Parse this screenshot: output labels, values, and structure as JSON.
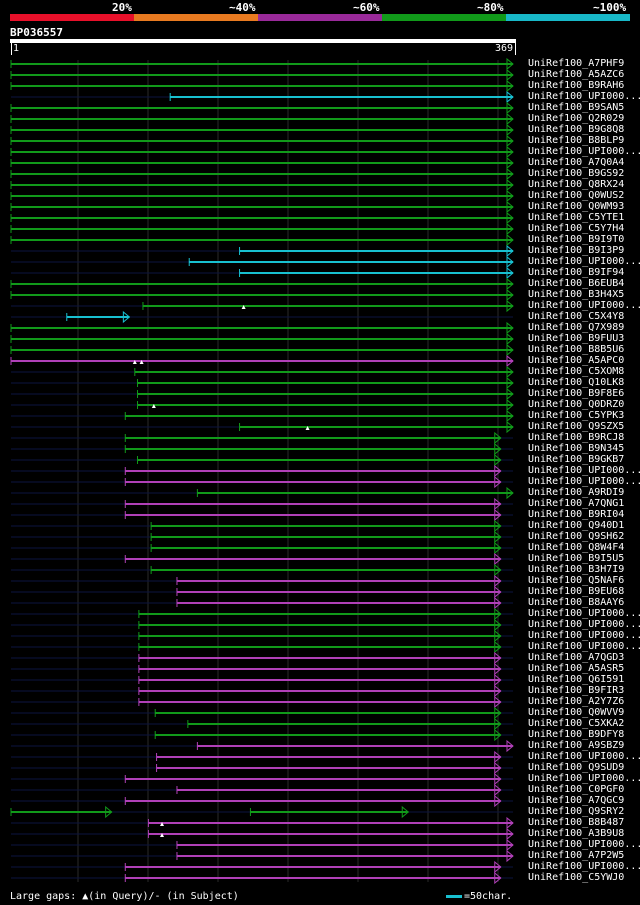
{
  "legend": {
    "labels": [
      "20%",
      "~40%",
      "~60%",
      "~80%",
      "~100%"
    ],
    "colors": [
      "#e8102a",
      "#e87a20",
      "#9a2a9a",
      "#119a1a",
      "#18b8c8"
    ]
  },
  "query": {
    "name": "BP036557",
    "start": "1",
    "end": "369",
    "length": 369
  },
  "footer": {
    "text": "Large gaps: ▲(in Query)/- (in Subject)",
    "scale": "=50char."
  },
  "hits": [
    {
      "label": "UniRef100_A7PHF9",
      "color": "green",
      "segments": [
        [
          0,
          369
        ]
      ]
    },
    {
      "label": "UniRef100_A5AZC6",
      "color": "green",
      "segments": [
        [
          0,
          369
        ]
      ]
    },
    {
      "label": "UniRef100_B9RAH6",
      "color": "green",
      "segments": [
        [
          0,
          369
        ]
      ]
    },
    {
      "label": "UniRef100_UPI000...",
      "color": "cyan",
      "segments": [
        [
          117,
          369
        ]
      ]
    },
    {
      "label": "UniRef100_B9SAN5",
      "color": "green",
      "segments": [
        [
          0,
          369
        ]
      ]
    },
    {
      "label": "UniRef100_Q2R029",
      "color": "green",
      "segments": [
        [
          0,
          369
        ]
      ]
    },
    {
      "label": "UniRef100_B9G8Q8",
      "color": "green",
      "segments": [
        [
          0,
          369
        ]
      ]
    },
    {
      "label": "UniRef100_B8BLP9",
      "color": "green",
      "segments": [
        [
          0,
          369
        ]
      ]
    },
    {
      "label": "UniRef100_UPI000...",
      "color": "green",
      "segments": [
        [
          0,
          369
        ]
      ]
    },
    {
      "label": "UniRef100_A7Q0A4",
      "color": "green",
      "segments": [
        [
          0,
          369
        ]
      ]
    },
    {
      "label": "UniRef100_B9GS92",
      "color": "green",
      "segments": [
        [
          0,
          369
        ]
      ]
    },
    {
      "label": "UniRef100_Q8RX24",
      "color": "green",
      "segments": [
        [
          0,
          369
        ]
      ]
    },
    {
      "label": "UniRef100_Q0WUS2",
      "color": "green",
      "segments": [
        [
          0,
          369
        ]
      ]
    },
    {
      "label": "UniRef100_Q0WM93",
      "color": "green",
      "segments": [
        [
          0,
          369
        ]
      ]
    },
    {
      "label": "UniRef100_C5YTE1",
      "color": "green",
      "segments": [
        [
          0,
          369
        ]
      ]
    },
    {
      "label": "UniRef100_C5Y7H4",
      "color": "green",
      "segments": [
        [
          0,
          369
        ]
      ]
    },
    {
      "label": "UniRef100_B9I9T0",
      "color": "green",
      "segments": [
        [
          0,
          369
        ]
      ]
    },
    {
      "label": "UniRef100_B9I3P9",
      "color": "cyan",
      "segments": [
        [
          168,
          369
        ]
      ]
    },
    {
      "label": "UniRef100_UPI000...",
      "color": "cyan",
      "segments": [
        [
          131,
          369
        ]
      ]
    },
    {
      "label": "UniRef100_B9IF94",
      "color": "cyan",
      "segments": [
        [
          168,
          369
        ]
      ]
    },
    {
      "label": "UniRef100_B6EUB4",
      "color": "green",
      "segments": [
        [
          0,
          369
        ]
      ]
    },
    {
      "label": "UniRef100_B3H4X5",
      "color": "green",
      "segments": [
        [
          0,
          369
        ]
      ]
    },
    {
      "label": "UniRef100_UPI000...",
      "color": "green",
      "segments": [
        [
          97,
          369
        ]
      ],
      "markers": [
        171
      ]
    },
    {
      "label": "UniRef100_C5X4Y8",
      "color": "cyan",
      "segments": [
        [
          41,
          87
        ]
      ]
    },
    {
      "label": "UniRef100_Q7X989",
      "color": "green",
      "segments": [
        [
          0,
          369
        ]
      ]
    },
    {
      "label": "UniRef100_B9FUU3",
      "color": "green",
      "segments": [
        [
          0,
          369
        ]
      ]
    },
    {
      "label": "UniRef100_B8B5U6",
      "color": "green",
      "segments": [
        [
          0,
          369
        ]
      ]
    },
    {
      "label": "UniRef100_A5APC0",
      "color": "magenta",
      "segments": [
        [
          0,
          369
        ]
      ],
      "markers": [
        91,
        96
      ]
    },
    {
      "label": "UniRef100_C5XOM8",
      "color": "green",
      "segments": [
        [
          91,
          369
        ]
      ]
    },
    {
      "label": "UniRef100_Q10LK8",
      "color": "green",
      "segments": [
        [
          93,
          369
        ]
      ]
    },
    {
      "label": "UniRef100_B9F8E6",
      "color": "green",
      "segments": [
        [
          93,
          369
        ]
      ]
    },
    {
      "label": "UniRef100_Q0DRZ0",
      "color": "green",
      "segments": [
        [
          93,
          369
        ]
      ],
      "markers": [
        105
      ]
    },
    {
      "label": "UniRef100_C5YPK3",
      "color": "green",
      "segments": [
        [
          84,
          369
        ]
      ]
    },
    {
      "label": "UniRef100_Q9SZX5",
      "color": "green",
      "segments": [
        [
          168,
          369
        ]
      ],
      "markers": [
        218
      ]
    },
    {
      "label": "UniRef100_B9RCJ8",
      "color": "green",
      "segments": [
        [
          84,
          360
        ]
      ]
    },
    {
      "label": "UniRef100_B9N345",
      "color": "green",
      "segments": [
        [
          84,
          360
        ]
      ]
    },
    {
      "label": "UniRef100_B9GKB7",
      "color": "green",
      "segments": [
        [
          93,
          360
        ]
      ]
    },
    {
      "label": "UniRef100_UPI000...",
      "color": "magenta",
      "segments": [
        [
          84,
          360
        ]
      ]
    },
    {
      "label": "UniRef100_UPI000...",
      "color": "magenta",
      "segments": [
        [
          84,
          360
        ]
      ]
    },
    {
      "label": "UniRef100_A9RDI9",
      "color": "green",
      "segments": [
        [
          137,
          369
        ]
      ]
    },
    {
      "label": "UniRef100_A7QNG1",
      "color": "magenta",
      "segments": [
        [
          84,
          360
        ]
      ]
    },
    {
      "label": "UniRef100_B9RI04",
      "color": "magenta",
      "segments": [
        [
          84,
          360
        ]
      ]
    },
    {
      "label": "UniRef100_Q940D1",
      "color": "green",
      "segments": [
        [
          103,
          360
        ]
      ]
    },
    {
      "label": "UniRef100_Q9SH62",
      "color": "green",
      "segments": [
        [
          103,
          360
        ]
      ]
    },
    {
      "label": "UniRef100_Q8W4F4",
      "color": "green",
      "segments": [
        [
          103,
          360
        ]
      ]
    },
    {
      "label": "UniRef100_B9I5U5",
      "color": "magenta",
      "segments": [
        [
          84,
          360
        ]
      ]
    },
    {
      "label": "UniRef100_B3H7I9",
      "color": "green",
      "segments": [
        [
          103,
          360
        ]
      ]
    },
    {
      "label": "UniRef100_Q5NAF6",
      "color": "magenta",
      "segments": [
        [
          122,
          360
        ]
      ]
    },
    {
      "label": "UniRef100_B9EU68",
      "color": "magenta",
      "segments": [
        [
          122,
          360
        ]
      ]
    },
    {
      "label": "UniRef100_B8AAY6",
      "color": "magenta",
      "segments": [
        [
          122,
          360
        ]
      ]
    },
    {
      "label": "UniRef100_UPI000...",
      "color": "green",
      "segments": [
        [
          94,
          360
        ]
      ]
    },
    {
      "label": "UniRef100_UPI000...",
      "color": "green",
      "segments": [
        [
          94,
          360
        ]
      ]
    },
    {
      "label": "UniRef100_UPI000...",
      "color": "green",
      "segments": [
        [
          94,
          360
        ]
      ]
    },
    {
      "label": "UniRef100_UPI000...",
      "color": "green",
      "segments": [
        [
          94,
          360
        ]
      ]
    },
    {
      "label": "UniRef100_A7QGD3",
      "color": "magenta",
      "segments": [
        [
          94,
          360
        ]
      ]
    },
    {
      "label": "UniRef100_A5ASR5",
      "color": "magenta",
      "segments": [
        [
          94,
          360
        ]
      ]
    },
    {
      "label": "UniRef100_Q6I591",
      "color": "magenta",
      "segments": [
        [
          94,
          360
        ]
      ]
    },
    {
      "label": "UniRef100_B9FIR3",
      "color": "magenta",
      "segments": [
        [
          94,
          360
        ]
      ]
    },
    {
      "label": "UniRef100_A2Y7Z6",
      "color": "magenta",
      "segments": [
        [
          94,
          360
        ]
      ]
    },
    {
      "label": "UniRef100_Q0WVV9",
      "color": "green",
      "segments": [
        [
          106,
          360
        ]
      ]
    },
    {
      "label": "UniRef100_C5XKA2",
      "color": "green",
      "segments": [
        [
          130,
          360
        ]
      ]
    },
    {
      "label": "UniRef100_B9DFY8",
      "color": "green",
      "segments": [
        [
          106,
          360
        ]
      ]
    },
    {
      "label": "UniRef100_A9SBZ9",
      "color": "magenta",
      "segments": [
        [
          137,
          369
        ]
      ]
    },
    {
      "label": "UniRef100_UPI000...",
      "color": "magenta",
      "segments": [
        [
          107,
          360
        ]
      ]
    },
    {
      "label": "UniRef100_Q9SUD9",
      "color": "magenta",
      "segments": [
        [
          107,
          360
        ]
      ]
    },
    {
      "label": "UniRef100_UPI000...",
      "color": "magenta",
      "segments": [
        [
          84,
          360
        ]
      ]
    },
    {
      "label": "UniRef100_C0PGF0",
      "color": "magenta",
      "segments": [
        [
          122,
          360
        ]
      ]
    },
    {
      "label": "UniRef100_A7QGC9",
      "color": "magenta",
      "segments": [
        [
          84,
          360
        ]
      ]
    },
    {
      "label": "UniRef100_Q9SRY2",
      "color": "green",
      "segments": [
        [
          0,
          74
        ],
        [
          176,
          292
        ]
      ]
    },
    {
      "label": "UniRef100_B8B487",
      "color": "magenta",
      "segments": [
        [
          101,
          369
        ]
      ],
      "markers": [
        111
      ]
    },
    {
      "label": "UniRef100_A3B9U8",
      "color": "magenta",
      "segments": [
        [
          101,
          369
        ]
      ],
      "markers": [
        111
      ]
    },
    {
      "label": "UniRef100_UPI000...",
      "color": "magenta",
      "segments": [
        [
          122,
          369
        ]
      ]
    },
    {
      "label": "UniRef100_A7P2W5",
      "color": "magenta",
      "segments": [
        [
          122,
          369
        ]
      ]
    },
    {
      "label": "UniRef100_UPI000...",
      "color": "magenta",
      "segments": [
        [
          84,
          360
        ]
      ]
    },
    {
      "label": "UniRef100_C5YWJ0",
      "color": "magenta",
      "segments": [
        [
          84,
          360
        ]
      ]
    }
  ]
}
